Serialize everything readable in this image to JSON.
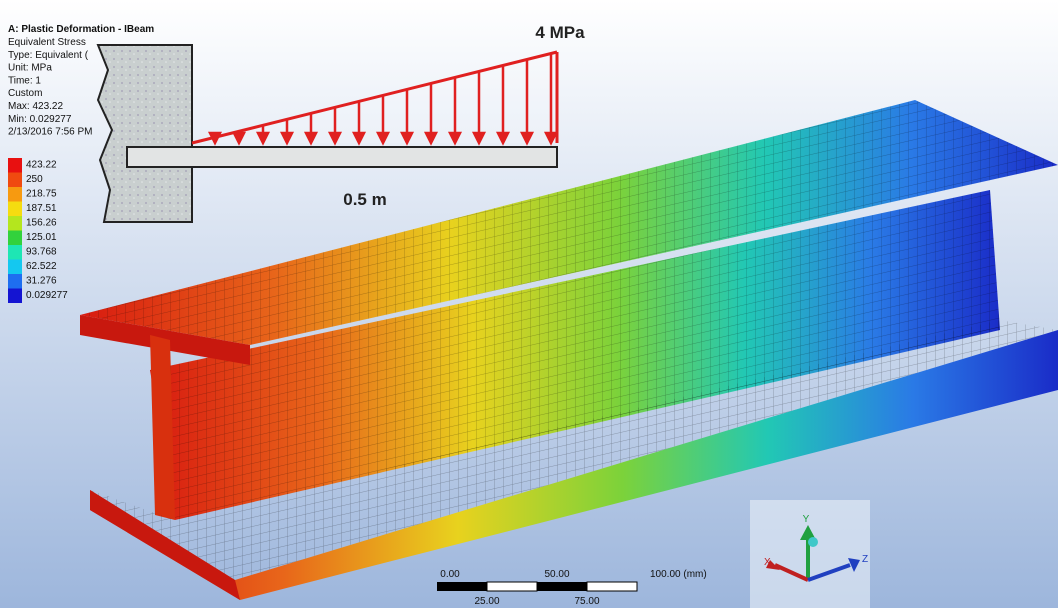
{
  "header": {
    "title": "A: Plastic Deformation - IBeam",
    "lines": [
      "Equivalent Stress",
      "Type: Equivalent (",
      "Unit: MPa",
      "Time: 1",
      "Custom",
      "Max: 423.22",
      "Min: 0.029277",
      "2/13/2016 7:56 PM"
    ]
  },
  "legend": {
    "labels": [
      "423.22",
      "250",
      "218.75",
      "187.51",
      "156.26",
      "125.01",
      "93.768",
      "62.522",
      "31.276",
      "0.029277"
    ],
    "colors": [
      "#e81010",
      "#f04a10",
      "#f79a10",
      "#f5dc10",
      "#b4e61e",
      "#32d23c",
      "#1ee6b4",
      "#14c8f0",
      "#1e6ef0",
      "#1414d2"
    ]
  },
  "diagram": {
    "load": "4 MPa",
    "length": "0.5 m"
  },
  "scale_bar": {
    "top": [
      "0.00",
      "50.00",
      "100.00 (mm)"
    ],
    "bottom": [
      "25.00",
      "75.00"
    ]
  },
  "triad": {
    "x": "X",
    "y": "Y",
    "z": "Z"
  }
}
